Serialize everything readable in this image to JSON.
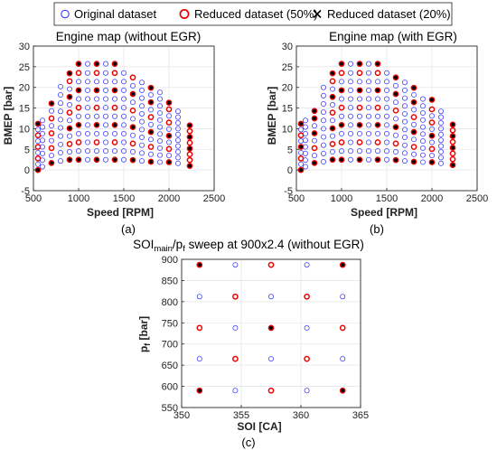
{
  "legend": {
    "items": [
      {
        "label": "Original dataset",
        "marker": "circle-open",
        "color": "#2222ff"
      },
      {
        "label": "Reduced dataset (50%)",
        "marker": "circle-open-thick",
        "color": "#ff0000"
      },
      {
        "label": "Reduced dataset (20%)",
        "marker": "x",
        "color": "#000000"
      }
    ]
  },
  "colors": {
    "original": "#3a3aff",
    "reduced50": "#ee0000",
    "reduced20": "#000000",
    "grid": "#e6e6e6",
    "axis": "#262626"
  },
  "chart_data": [
    {
      "type": "scatter",
      "title": "Engine map (without EGR)",
      "caption": "(a)",
      "xlabel": "Speed [RPM]",
      "ylabel": "BMEP [bar]",
      "xlim": [
        500,
        2500
      ],
      "ylim": [
        -5,
        30
      ],
      "xticks": [
        500,
        1000,
        1500,
        2000,
        2500
      ],
      "yticks": [
        -5,
        0,
        5,
        10,
        15,
        20,
        25,
        30
      ],
      "grid": true,
      "columns": [
        {
          "x": 550,
          "y": [
            0,
            1.4,
            2.8,
            4.2,
            5.6,
            7.0,
            8.4,
            9.8,
            11.2
          ],
          "red": [
            0,
            2,
            4,
            6,
            8
          ],
          "black": [
            0,
            8
          ]
        },
        {
          "x": 600,
          "y": [
            0.8,
            2.4,
            4.0,
            5.6,
            7.2,
            8.8,
            10.4,
            12.0
          ],
          "red": [],
          "black": []
        },
        {
          "x": 700,
          "y": [
            1.7,
            3.5,
            5.3,
            7.1,
            8.9,
            10.7,
            12.5,
            14.3,
            16.1
          ],
          "red": [
            0,
            2,
            4,
            6,
            8
          ],
          "black": [
            0,
            8
          ]
        },
        {
          "x": 800,
          "y": [
            2.2,
            4.2,
            6.2,
            8.2,
            10.2,
            12.2,
            14.2,
            16.2,
            18.2,
            20.2
          ],
          "red": [],
          "black": []
        },
        {
          "x": 900,
          "y": [
            2.5,
            4.4,
            6.3,
            8.2,
            10.1,
            12.0,
            13.9,
            15.8,
            17.7,
            19.6,
            21.5,
            23.4
          ],
          "red": [
            0,
            2,
            4,
            6,
            8,
            10,
            11
          ],
          "black": [
            0,
            4,
            8,
            11
          ]
        },
        {
          "x": 1000,
          "y": [
            2.5,
            4.6,
            6.7,
            8.8,
            10.9,
            13.0,
            15.1,
            17.2,
            19.3,
            21.4,
            23.5,
            25.7
          ],
          "red": [
            0,
            2,
            4,
            6,
            8,
            10,
            11
          ],
          "black": [
            0,
            4,
            8,
            11
          ]
        },
        {
          "x": 1100,
          "y": [
            2.5,
            4.6,
            6.7,
            8.8,
            10.9,
            13.0,
            15.1,
            17.2,
            19.3,
            21.4,
            23.5,
            25.7
          ],
          "red": [],
          "black": []
        },
        {
          "x": 1200,
          "y": [
            2.5,
            4.6,
            6.7,
            8.8,
            10.9,
            13.0,
            15.1,
            17.2,
            19.3,
            21.4,
            23.5,
            25.7
          ],
          "red": [
            0,
            2,
            4,
            6,
            8,
            10,
            11
          ],
          "black": [
            0,
            4,
            8,
            11
          ]
        },
        {
          "x": 1300,
          "y": [
            2.5,
            4.6,
            6.7,
            8.8,
            10.9,
            13.0,
            15.1,
            17.2,
            19.3,
            21.4,
            23.5,
            25.7
          ],
          "red": [],
          "black": []
        },
        {
          "x": 1400,
          "y": [
            2.5,
            4.6,
            6.7,
            8.8,
            10.9,
            13.0,
            15.1,
            17.2,
            19.3,
            21.4,
            23.5,
            25.7
          ],
          "red": [
            0,
            2,
            4,
            6,
            8,
            10,
            11
          ],
          "black": [
            0,
            4,
            8,
            11
          ]
        },
        {
          "x": 1500,
          "y": [
            2.5,
            4.6,
            6.7,
            8.8,
            10.9,
            13.0,
            15.1,
            17.2,
            19.3,
            21.4,
            23.5
          ],
          "red": [],
          "black": []
        },
        {
          "x": 1600,
          "y": [
            2.4,
            4.4,
            6.4,
            8.4,
            10.4,
            12.4,
            14.4,
            16.4,
            18.4,
            20.4,
            22.4
          ],
          "red": [
            0,
            2,
            4,
            6,
            8,
            10
          ],
          "black": [
            0,
            4,
            8
          ]
        },
        {
          "x": 1700,
          "y": [
            2.2,
            4.1,
            6.0,
            7.9,
            9.8,
            11.7,
            13.6,
            15.5,
            17.4,
            19.3,
            21.2
          ],
          "red": [],
          "black": []
        },
        {
          "x": 1800,
          "y": [
            2.0,
            3.8,
            5.6,
            7.4,
            9.2,
            11.0,
            12.8,
            14.6,
            16.4,
            18.2,
            19.9
          ],
          "red": [
            0,
            2,
            4,
            6,
            8,
            10
          ],
          "black": [
            0,
            4,
            8,
            10
          ]
        },
        {
          "x": 1900,
          "y": [
            1.9,
            3.6,
            5.3,
            7.0,
            8.7,
            10.4,
            12.1,
            13.8,
            15.5,
            17.2,
            18.8
          ],
          "red": [],
          "black": []
        },
        {
          "x": 2000,
          "y": [
            1.9,
            3.5,
            5.1,
            6.7,
            8.3,
            9.9,
            11.5,
            13.1,
            14.7,
            16.3
          ],
          "red": [
            0,
            2,
            4,
            6,
            8,
            9
          ],
          "black": [
            0,
            4,
            9
          ]
        },
        {
          "x": 2100,
          "y": [
            1.6,
            3.0,
            4.4,
            5.8,
            7.2,
            8.6,
            10.0,
            11.4,
            12.8,
            14.2
          ],
          "red": [],
          "black": []
        },
        {
          "x": 2230,
          "y": [
            1.0,
            2.4,
            3.8,
            5.2,
            6.6,
            8.0,
            9.4,
            10.8
          ],
          "red": [
            0,
            1,
            2,
            3,
            4,
            5,
            6,
            7
          ],
          "black": [
            0,
            3,
            5,
            7
          ]
        }
      ]
    },
    {
      "type": "scatter",
      "title": "Engine map (with EGR)",
      "caption": "(b)",
      "xlabel": "Speed [RPM]",
      "ylabel": "BMEP [bar]",
      "xlim": [
        500,
        2500
      ],
      "ylim": [
        -5,
        30
      ],
      "xticks": [
        500,
        1000,
        1500,
        2000,
        2500
      ],
      "yticks": [
        -5,
        0,
        5,
        10,
        15,
        20,
        25,
        30
      ],
      "grid": true,
      "columns": [
        {
          "x": 550,
          "y": [
            0,
            1.4,
            2.8,
            4.2,
            5.6,
            7.0,
            8.4,
            9.8,
            11.2
          ],
          "red": [
            0,
            2,
            4,
            6,
            8
          ],
          "black": [
            0,
            4,
            8
          ]
        },
        {
          "x": 600,
          "y": [
            0.8,
            2.4,
            4.0,
            5.6,
            7.2,
            8.8,
            10.4,
            12.0
          ],
          "red": [],
          "black": []
        },
        {
          "x": 700,
          "y": [
            1.7,
            3.5,
            5.3,
            7.1,
            8.9,
            10.7,
            12.5,
            14.3
          ],
          "red": [
            0,
            2,
            4,
            6,
            7
          ],
          "black": [
            0,
            4,
            6,
            7
          ]
        },
        {
          "x": 800,
          "y": [
            2.0,
            4.0,
            6.0,
            8.0,
            10.0,
            12.0,
            14.0,
            16.0,
            18.0,
            20.0
          ],
          "red": [],
          "black": []
        },
        {
          "x": 900,
          "y": [
            2.5,
            4.4,
            6.3,
            8.2,
            10.1,
            12.0,
            13.9,
            15.8,
            17.7,
            19.6,
            21.5,
            23.4
          ],
          "red": [
            0,
            2,
            4,
            6,
            8,
            10,
            11
          ],
          "black": [
            0,
            4,
            8,
            11
          ]
        },
        {
          "x": 1000,
          "y": [
            2.5,
            4.6,
            6.7,
            8.8,
            10.9,
            13.0,
            15.1,
            17.2,
            19.3,
            21.4,
            23.5,
            25.7
          ],
          "red": [
            0,
            2,
            4,
            6,
            8,
            10,
            11
          ],
          "black": [
            0,
            4,
            8,
            11
          ]
        },
        {
          "x": 1100,
          "y": [
            2.5,
            4.6,
            6.7,
            8.8,
            10.9,
            13.0,
            15.1,
            17.2,
            19.3,
            21.4,
            23.5,
            25.7
          ],
          "red": [],
          "black": []
        },
        {
          "x": 1200,
          "y": [
            2.5,
            4.6,
            6.7,
            8.8,
            10.9,
            13.0,
            15.1,
            17.2,
            19.3,
            21.4,
            23.5,
            25.7
          ],
          "red": [
            0,
            2,
            4,
            6,
            8,
            10,
            11
          ],
          "black": [
            0,
            4,
            8,
            11
          ]
        },
        {
          "x": 1300,
          "y": [
            2.5,
            4.6,
            6.7,
            8.8,
            10.9,
            13.0,
            15.1,
            17.2,
            19.3,
            21.4,
            23.5,
            25.7
          ],
          "red": [],
          "black": []
        },
        {
          "x": 1400,
          "y": [
            2.5,
            4.6,
            6.7,
            8.8,
            10.9,
            13.0,
            15.1,
            17.2,
            19.3,
            21.4,
            23.5,
            25.7
          ],
          "red": [
            0,
            2,
            4,
            6,
            8,
            10,
            11
          ],
          "black": [
            0,
            4,
            8,
            11
          ]
        },
        {
          "x": 1500,
          "y": [
            2.5,
            4.6,
            6.7,
            8.8,
            10.9,
            13.0,
            15.1,
            17.2,
            19.3,
            21.4,
            23.5
          ],
          "red": [],
          "black": []
        },
        {
          "x": 1600,
          "y": [
            2.4,
            4.4,
            6.4,
            8.4,
            10.4,
            12.4,
            14.4,
            16.4,
            18.4,
            20.4,
            22.4
          ],
          "red": [
            0,
            2,
            4,
            6,
            8,
            10
          ],
          "black": [
            0,
            4,
            8,
            10
          ]
        },
        {
          "x": 1700,
          "y": [
            2.2,
            4.1,
            6.0,
            7.9,
            9.8,
            11.7,
            13.6,
            15.5,
            17.4,
            19.3,
            21.2
          ],
          "red": [],
          "black": []
        },
        {
          "x": 1800,
          "y": [
            2.0,
            3.8,
            5.6,
            7.4,
            9.2,
            11.0,
            12.8,
            14.6,
            16.4,
            18.2,
            19.9
          ],
          "red": [
            0,
            2,
            4,
            6,
            8,
            10
          ],
          "black": [
            0,
            4,
            8,
            10
          ]
        },
        {
          "x": 1900,
          "y": [
            1.9,
            3.6,
            5.3,
            7.0,
            8.7,
            10.4,
            12.1,
            13.8,
            15.5,
            17.2
          ],
          "red": [],
          "black": []
        },
        {
          "x": 2000,
          "y": [
            1.9,
            3.5,
            5.1,
            6.7,
            8.3,
            9.9,
            11.5,
            13.1,
            14.7,
            17.0
          ],
          "red": [
            0,
            2,
            4,
            6,
            8,
            9
          ],
          "black": [
            0,
            4,
            9
          ]
        },
        {
          "x": 2100,
          "y": [
            1.6,
            3.0,
            4.4,
            5.8,
            7.2,
            8.6,
            10.0,
            11.4,
            12.8,
            14.2
          ],
          "red": [],
          "black": []
        },
        {
          "x": 2230,
          "y": [
            1.2,
            2.6,
            4.0,
            5.4,
            6.8,
            8.2,
            9.6,
            11.0
          ],
          "red": [
            0,
            1,
            2,
            3,
            4,
            5,
            6,
            7
          ],
          "black": [
            0,
            3,
            5,
            7
          ]
        }
      ]
    },
    {
      "type": "scatter",
      "title_main": "SOI",
      "title_main_sub": "main",
      "title_sep": "/p",
      "title_sep_sub": "f",
      "title_rest": " sweep at 900x2.4 (without EGR)",
      "caption": "(c)",
      "xlabel": "SOI [CA]",
      "ylabel_main": "p",
      "ylabel_sub": "f",
      "ylabel_rest": " [bar]",
      "xlim": [
        350,
        365
      ],
      "ylim": [
        550,
        900
      ],
      "xticks": [
        350,
        355,
        360,
        365
      ],
      "yticks": [
        550,
        600,
        650,
        700,
        750,
        800,
        850,
        900
      ],
      "grid": true,
      "columns": [
        {
          "x": 351.5,
          "y": [
            590,
            665,
            738,
            812,
            887
          ],
          "red": [
            0,
            2,
            4
          ],
          "black": [
            0,
            4
          ]
        },
        {
          "x": 354.5,
          "y": [
            590,
            665,
            738,
            812,
            887
          ],
          "red": [
            1,
            3
          ],
          "black": []
        },
        {
          "x": 357.5,
          "y": [
            590,
            665,
            738,
            812,
            887
          ],
          "red": [
            0,
            2,
            4
          ],
          "black": [
            2
          ]
        },
        {
          "x": 360.5,
          "y": [
            590,
            665,
            738,
            812,
            887
          ],
          "red": [
            1,
            3
          ],
          "black": []
        },
        {
          "x": 363.5,
          "y": [
            590,
            665,
            738,
            812,
            887
          ],
          "red": [
            0,
            2,
            4
          ],
          "black": [
            0,
            4
          ]
        }
      ]
    }
  ]
}
